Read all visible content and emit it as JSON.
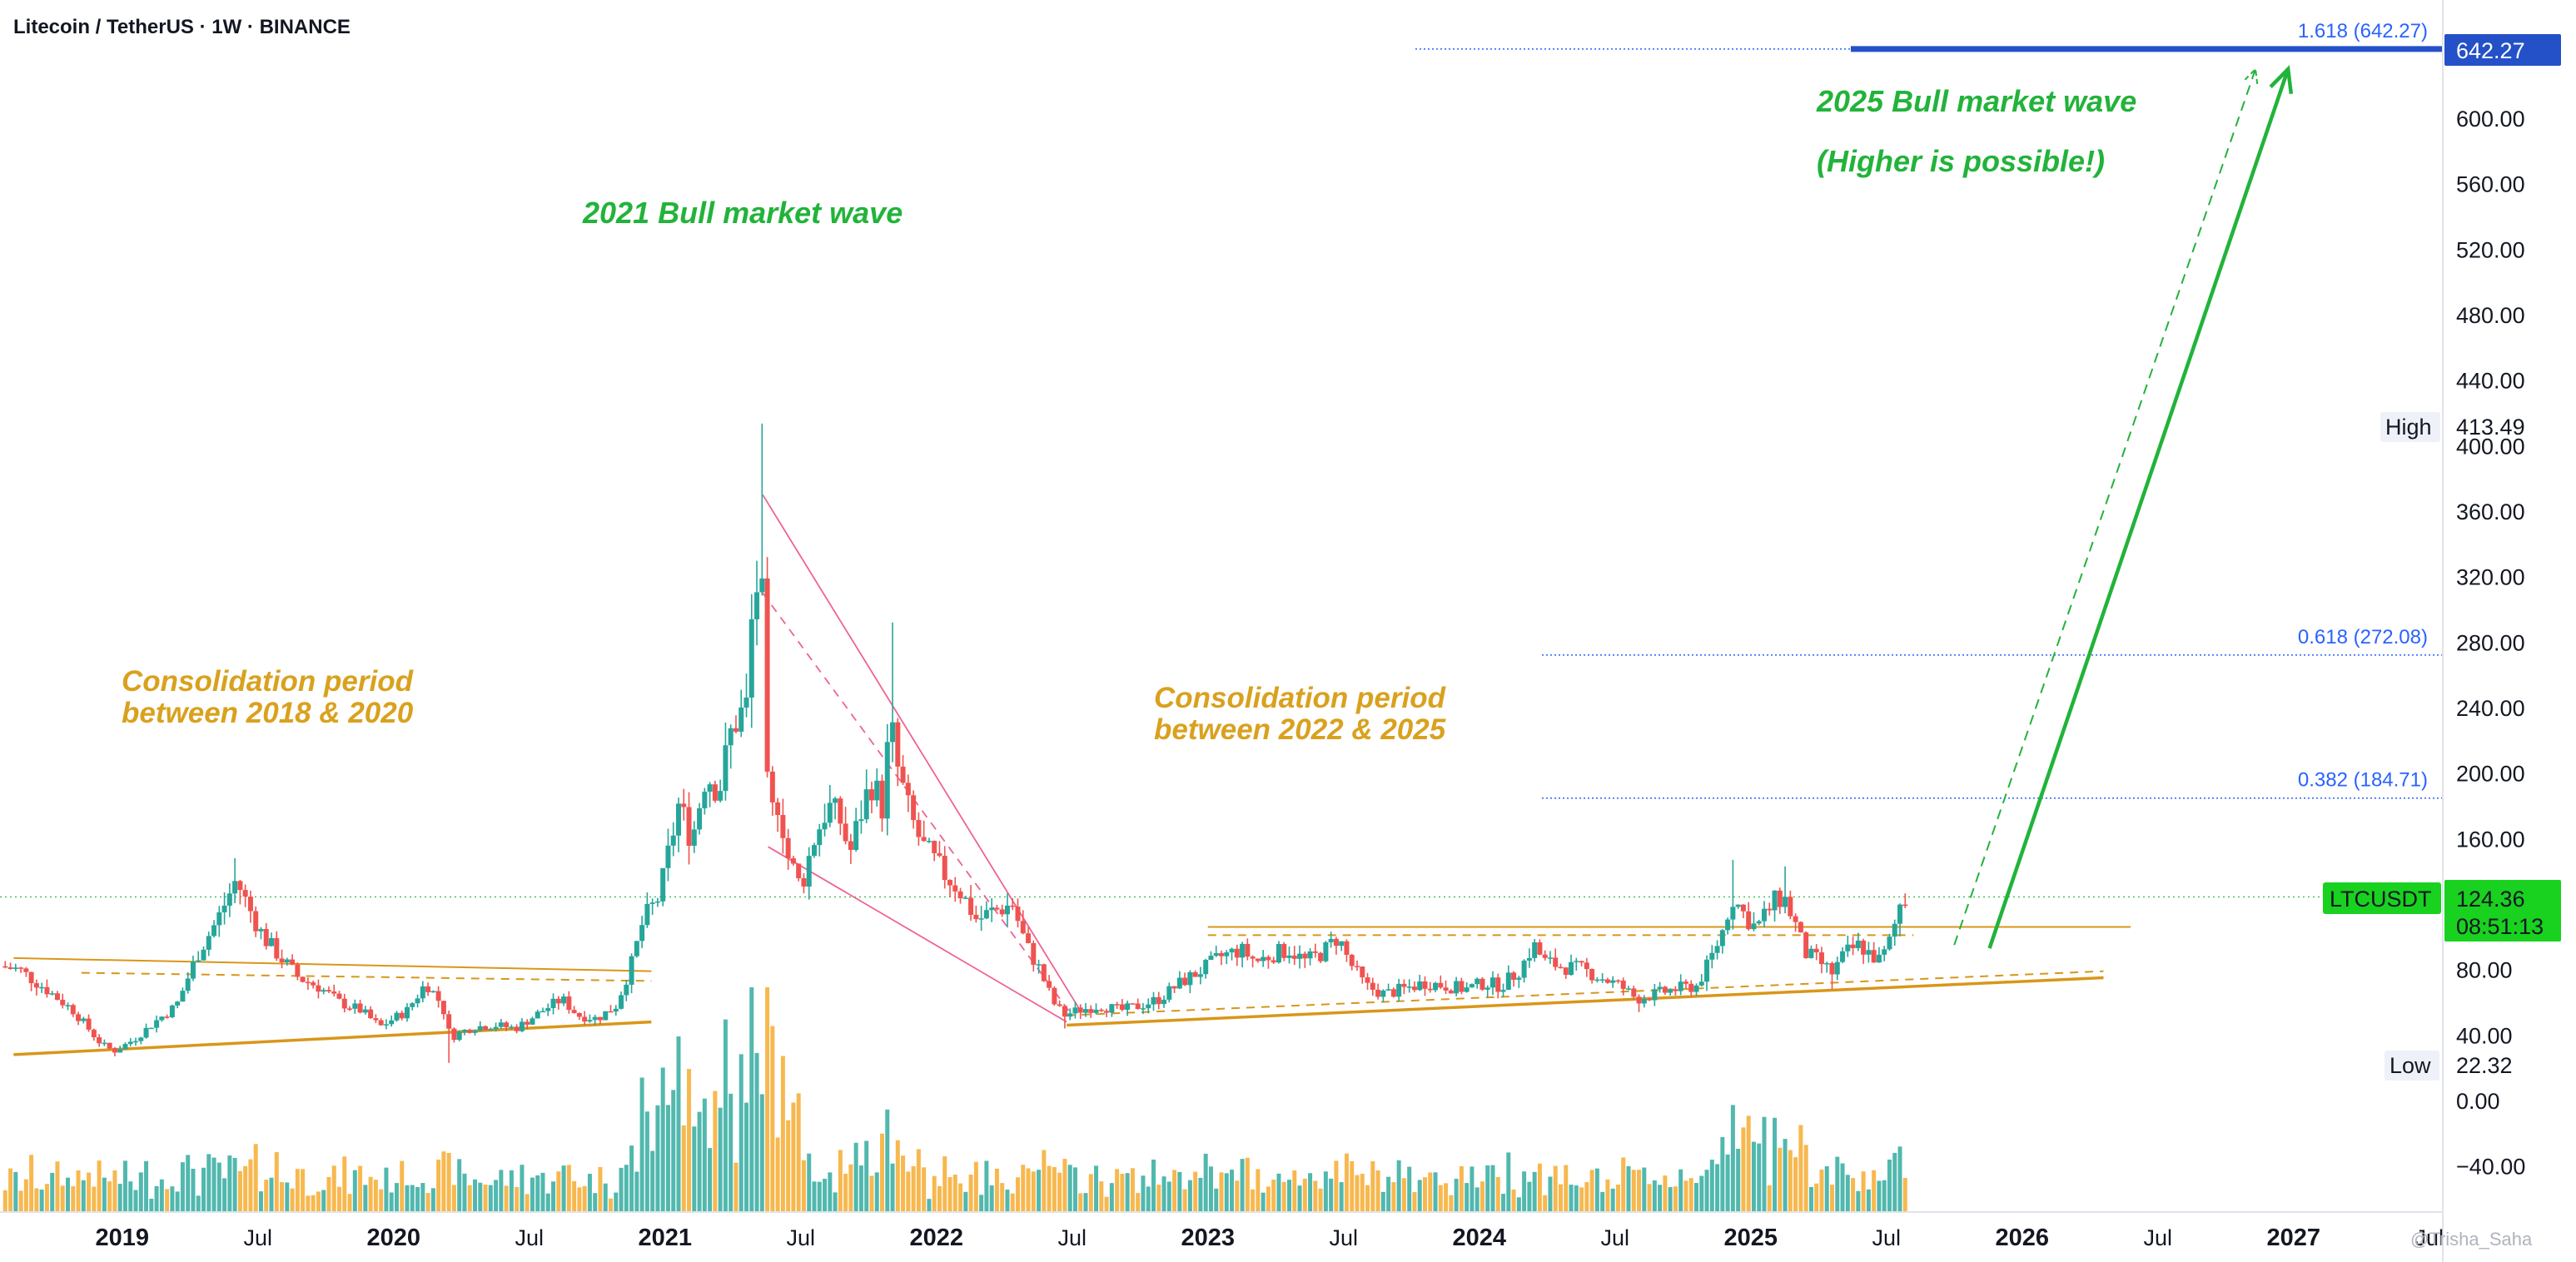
{
  "chart_data": {
    "type": "candlestick",
    "title": "Litecoin / TetherUS · 1W · BINANCE",
    "symbol": "LTCUSDT",
    "timeframe": "1W",
    "exchange": "BINANCE",
    "y_range": [
      -55,
      665
    ],
    "x_range": [
      2018.55,
      2027.55
    ],
    "y_ticks": [
      "600.00",
      "560.00",
      "520.00",
      "480.00",
      "440.00",
      "400.00",
      "360.00",
      "320.00",
      "280.00",
      "240.00",
      "200.00",
      "160.00",
      "80.00",
      "40.00",
      "0.00",
      "−40.00"
    ],
    "x_ticks": [
      {
        "label": "2019",
        "t": 2019.0,
        "bold": true
      },
      {
        "label": "Jul",
        "t": 2019.5,
        "bold": false
      },
      {
        "label": "2020",
        "t": 2020.0,
        "bold": true
      },
      {
        "label": "Jul",
        "t": 2020.5,
        "bold": false
      },
      {
        "label": "2021",
        "t": 2021.0,
        "bold": true
      },
      {
        "label": "Jul",
        "t": 2021.5,
        "bold": false
      },
      {
        "label": "2022",
        "t": 2022.0,
        "bold": true
      },
      {
        "label": "Jul",
        "t": 2022.5,
        "bold": false
      },
      {
        "label": "2023",
        "t": 2023.0,
        "bold": true
      },
      {
        "label": "Jul",
        "t": 2023.5,
        "bold": false
      },
      {
        "label": "2024",
        "t": 2024.0,
        "bold": true
      },
      {
        "label": "Jul",
        "t": 2024.5,
        "bold": false
      },
      {
        "label": "2025",
        "t": 2025.0,
        "bold": true
      },
      {
        "label": "Jul",
        "t": 2025.5,
        "bold": false
      },
      {
        "label": "2026",
        "t": 2026.0,
        "bold": true
      },
      {
        "label": "Jul",
        "t": 2026.5,
        "bold": false
      },
      {
        "label": "2027",
        "t": 2027.0,
        "bold": true
      },
      {
        "label": "Jul",
        "t": 2027.5,
        "bold": false
      }
    ],
    "price_path": [
      [
        2018.55,
        82
      ],
      [
        2018.62,
        80
      ],
      [
        2018.72,
        68
      ],
      [
        2018.82,
        55
      ],
      [
        2018.92,
        35
      ],
      [
        2018.97,
        30
      ],
      [
        2019.05,
        38
      ],
      [
        2019.12,
        48
      ],
      [
        2019.2,
        58
      ],
      [
        2019.28,
        90
      ],
      [
        2019.35,
        110
      ],
      [
        2019.42,
        135
      ],
      [
        2019.46,
        120
      ],
      [
        2019.52,
        100
      ],
      [
        2019.58,
        88
      ],
      [
        2019.65,
        75
      ],
      [
        2019.72,
        70
      ],
      [
        2019.8,
        60
      ],
      [
        2019.88,
        55
      ],
      [
        2019.95,
        45
      ],
      [
        2020.05,
        55
      ],
      [
        2020.12,
        72
      ],
      [
        2020.18,
        58
      ],
      [
        2020.21,
        38
      ],
      [
        2020.25,
        42
      ],
      [
        2020.3,
        45
      ],
      [
        2020.38,
        46
      ],
      [
        2020.45,
        44
      ],
      [
        2020.55,
        55
      ],
      [
        2020.62,
        62
      ],
      [
        2020.68,
        52
      ],
      [
        2020.75,
        50
      ],
      [
        2020.82,
        58
      ],
      [
        2020.88,
        85
      ],
      [
        2020.92,
        110
      ],
      [
        2020.98,
        125
      ],
      [
        2021.05,
        180
      ],
      [
        2021.1,
        160
      ],
      [
        2021.15,
        200
      ],
      [
        2021.2,
        190
      ],
      [
        2021.25,
        230
      ],
      [
        2021.3,
        240
      ],
      [
        2021.33,
        320
      ],
      [
        2021.36,
        300
      ],
      [
        2021.38,
        170
      ],
      [
        2021.42,
        185
      ],
      [
        2021.45,
        150
      ],
      [
        2021.5,
        130
      ],
      [
        2021.55,
        160
      ],
      [
        2021.6,
        180
      ],
      [
        2021.65,
        170
      ],
      [
        2021.68,
        150
      ],
      [
        2021.72,
        175
      ],
      [
        2021.76,
        195
      ],
      [
        2021.8,
        180
      ],
      [
        2021.83,
        230
      ],
      [
        2021.86,
        200
      ],
      [
        2021.9,
        175
      ],
      [
        2021.95,
        155
      ],
      [
        2022.02,
        140
      ],
      [
        2022.08,
        130
      ],
      [
        2022.15,
        110
      ],
      [
        2022.2,
        115
      ],
      [
        2022.28,
        120
      ],
      [
        2022.33,
        95
      ],
      [
        2022.38,
        80
      ],
      [
        2022.43,
        60
      ],
      [
        2022.47,
        52
      ],
      [
        2022.52,
        55
      ],
      [
        2022.6,
        58
      ],
      [
        2022.68,
        55
      ],
      [
        2022.75,
        58
      ],
      [
        2022.82,
        62
      ],
      [
        2022.9,
        72
      ],
      [
        2022.98,
        80
      ],
      [
        2023.05,
        88
      ],
      [
        2023.12,
        92
      ],
      [
        2023.18,
        85
      ],
      [
        2023.25,
        90
      ],
      [
        2023.3,
        92
      ],
      [
        2023.36,
        85
      ],
      [
        2023.42,
        90
      ],
      [
        2023.48,
        100
      ],
      [
        2023.52,
        85
      ],
      [
        2023.58,
        70
      ],
      [
        2023.65,
        65
      ],
      [
        2023.72,
        68
      ],
      [
        2023.8,
        72
      ],
      [
        2023.88,
        70
      ],
      [
        2023.95,
        68
      ],
      [
        2024.02,
        72
      ],
      [
        2024.08,
        70
      ],
      [
        2024.15,
        80
      ],
      [
        2024.2,
        95
      ],
      [
        2024.24,
        85
      ],
      [
        2024.3,
        82
      ],
      [
        2024.38,
        80
      ],
      [
        2024.45,
        75
      ],
      [
        2024.52,
        70
      ],
      [
        2024.58,
        62
      ],
      [
        2024.65,
        65
      ],
      [
        2024.72,
        68
      ],
      [
        2024.8,
        70
      ],
      [
        2024.85,
        85
      ],
      [
        2024.9,
        105
      ],
      [
        2024.93,
        125
      ],
      [
        2024.97,
        115
      ],
      [
        2025.02,
        105
      ],
      [
        2025.08,
        120
      ],
      [
        2025.12,
        125
      ],
      [
        2025.16,
        110
      ],
      [
        2025.2,
        90
      ],
      [
        2025.25,
        85
      ],
      [
        2025.3,
        78
      ],
      [
        2025.35,
        90
      ],
      [
        2025.4,
        95
      ],
      [
        2025.45,
        88
      ],
      [
        2025.48,
        85
      ],
      [
        2025.52,
        100
      ],
      [
        2025.55,
        120
      ],
      [
        2025.58,
        124.36
      ]
    ],
    "wick_highs": [
      [
        2019.42,
        148
      ],
      [
        2021.36,
        413.49
      ],
      [
        2021.83,
        292
      ],
      [
        2024.93,
        147
      ],
      [
        2025.12,
        143
      ]
    ],
    "wick_lows": [
      [
        2018.97,
        27
      ],
      [
        2020.21,
        23
      ],
      [
        2022.47,
        44
      ],
      [
        2024.58,
        54
      ],
      [
        2025.3,
        68
      ]
    ],
    "current_price": 124.36,
    "countdown": "08:51:13",
    "high_label": "High",
    "high_value": "413.49",
    "low_label": "Low",
    "low_value": "22.32",
    "fib_levels": [
      {
        "ratio": "1.618",
        "value": 642.27,
        "label": "1.618 (642.27)",
        "t_start": 2023.95
      },
      {
        "ratio": "0.618",
        "value": 272.08,
        "label": "0.618 (272.08)",
        "t_start": 2023.95
      },
      {
        "ratio": "0.382",
        "value": 184.71,
        "label": "0.382 (184.71)",
        "t_start": 2023.95
      }
    ],
    "fib_axis_tag": "642.27",
    "annotations": {
      "wave_2021": "2021 Bull market wave",
      "wave_2025": "2025 Bull market wave",
      "wave_2025_note": "(Higher is possible!)",
      "consolidation_1_line1": "Consolidation period",
      "consolidation_1_line2": "between 2018 & 2020",
      "consolidation_2_line1": "Consolidation period",
      "consolidation_2_line2": "between 2022 & 2025"
    },
    "consolidation_1": {
      "support": [
        [
          2018.6,
          28
        ],
        [
          2020.95,
          48
        ]
      ],
      "resistance": [
        [
          2018.6,
          87
        ],
        [
          2020.95,
          79
        ]
      ],
      "mid": [
        [
          2018.85,
          78
        ],
        [
          2020.95,
          73
        ]
      ]
    },
    "consolidation_2": {
      "support": [
        [
          2022.48,
          46
        ],
        [
          2026.3,
          75
        ]
      ],
      "resistance": [
        [
          2023.0,
          106
        ],
        [
          2026.4,
          106
        ]
      ],
      "mid": [
        [
          2023.0,
          101
        ],
        [
          2025.6,
          101
        ]
      ],
      "mid_low": [
        [
          2022.48,
          52
        ],
        [
          2026.3,
          79
        ]
      ]
    },
    "falling_channel": {
      "upper": [
        [
          2021.36,
          370
        ],
        [
          2022.53,
          55
        ]
      ],
      "lower": [
        [
          2021.38,
          155
        ],
        [
          2022.48,
          48
        ]
      ],
      "mid": [
        [
          2021.36,
          310
        ],
        [
          2022.5,
          52
        ]
      ]
    },
    "arrows": {
      "solid": [
        [
          2025.88,
          93
        ],
        [
          2026.98,
          630
        ]
      ],
      "dashed": [
        [
          2025.75,
          95
        ],
        [
          2026.86,
          630
        ]
      ]
    },
    "colors": {
      "up": "#26a69a",
      "down": "#ef5350",
      "vol_up": "#26a69a",
      "vol_down": "#f5a623",
      "fib": "#2962ff",
      "green": "#22b33a",
      "orange": "#d9961a",
      "pink": "#f06292",
      "price_tag": "#19d11f"
    }
  },
  "watermark": "@Trisha_Saha"
}
